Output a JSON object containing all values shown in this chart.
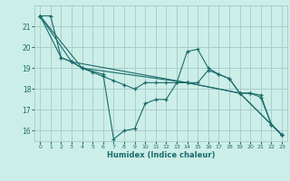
{
  "title": "",
  "xlabel": "Humidex (Indice chaleur)",
  "bg_color": "#cceee8",
  "grid_color": "#aacccc",
  "line_color": "#1a6b6b",
  "xlim": [
    -0.5,
    23.5
  ],
  "ylim": [
    15.5,
    22.0
  ],
  "yticks": [
    16,
    17,
    18,
    19,
    20,
    21
  ],
  "xticks": [
    0,
    1,
    2,
    3,
    4,
    5,
    6,
    7,
    8,
    9,
    10,
    11,
    12,
    13,
    14,
    15,
    16,
    17,
    18,
    19,
    20,
    21,
    22,
    23
  ],
  "lines": [
    {
      "x": [
        0,
        1,
        2,
        3,
        4,
        5,
        6,
        7,
        8,
        9,
        10,
        11,
        12,
        13,
        14,
        15,
        16,
        17,
        18,
        19,
        20,
        21,
        22,
        23
      ],
      "y": [
        21.5,
        21.5,
        19.5,
        19.3,
        19.0,
        18.8,
        18.6,
        18.4,
        18.2,
        18.0,
        18.3,
        18.3,
        18.3,
        18.3,
        18.3,
        18.3,
        18.9,
        18.7,
        18.5,
        17.8,
        17.8,
        17.7,
        16.3,
        15.8
      ]
    },
    {
      "x": [
        0,
        2,
        3,
        4,
        6,
        7,
        8,
        9,
        10,
        11,
        12,
        13,
        14,
        15,
        16,
        17,
        18,
        19,
        20,
        21,
        22,
        23
      ],
      "y": [
        21.5,
        19.5,
        19.3,
        19.0,
        18.7,
        15.6,
        16.0,
        16.1,
        17.3,
        17.5,
        17.5,
        18.3,
        19.8,
        19.9,
        19.0,
        18.7,
        18.5,
        17.8,
        17.8,
        17.6,
        16.3,
        15.8
      ]
    },
    {
      "x": [
        0,
        4,
        14,
        19,
        23
      ],
      "y": [
        21.5,
        19.0,
        18.3,
        17.8,
        15.8
      ]
    },
    {
      "x": [
        0,
        3,
        14,
        19,
        23
      ],
      "y": [
        21.5,
        19.3,
        18.3,
        17.8,
        15.8
      ]
    }
  ]
}
